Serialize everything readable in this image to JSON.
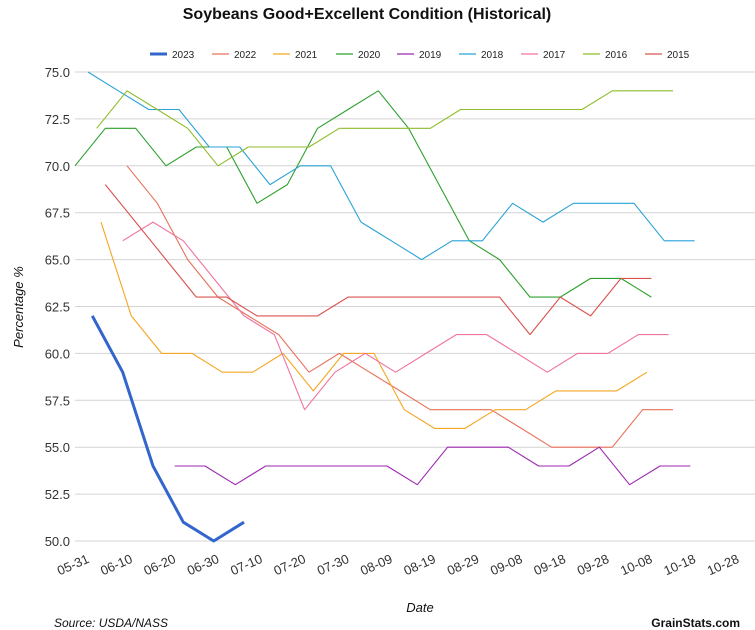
{
  "chart_data": {
    "type": "line",
    "title": "Soybeans Good+Excellent Condition (Historical)",
    "xlabel": "Date",
    "ylabel": "Percentage %",
    "ylim": [
      50,
      75
    ],
    "yticks": [
      "50.0",
      "52.5",
      "55.0",
      "57.5",
      "60.0",
      "62.5",
      "65.0",
      "67.5",
      "70.0",
      "72.5",
      "75.0"
    ],
    "xlim": [
      "05-31",
      "10-28"
    ],
    "xticks": [
      "05-31",
      "06-10",
      "06-20",
      "06-30",
      "07-10",
      "07-20",
      "07-30",
      "08-09",
      "08-19",
      "08-29",
      "09-08",
      "09-18",
      "09-28",
      "10-08",
      "10-18",
      "10-28"
    ],
    "grid": true,
    "legend_position": "top",
    "series": [
      {
        "name": "2023",
        "color": "#3366cc",
        "emphasis": true,
        "points": [
          [
            "06-04",
            62
          ],
          [
            "06-11",
            59
          ],
          [
            "06-18",
            54
          ],
          [
            "06-25",
            51
          ],
          [
            "07-02",
            50
          ],
          [
            "07-09",
            51
          ]
        ]
      },
      {
        "name": "2022",
        "color": "#e8705a",
        "points": [
          [
            "06-12",
            70
          ],
          [
            "06-19",
            68
          ],
          [
            "06-26",
            65
          ],
          [
            "07-03",
            63
          ],
          [
            "07-10",
            62
          ],
          [
            "07-17",
            61
          ],
          [
            "07-24",
            59
          ],
          [
            "07-31",
            60
          ],
          [
            "08-07",
            59
          ],
          [
            "08-14",
            58
          ],
          [
            "08-21",
            57
          ],
          [
            "08-28",
            57
          ],
          [
            "09-04",
            57
          ],
          [
            "09-11",
            56
          ],
          [
            "09-18",
            55
          ],
          [
            "09-25",
            55
          ],
          [
            "10-02",
            55
          ],
          [
            "10-09",
            57
          ],
          [
            "10-16",
            57
          ]
        ]
      },
      {
        "name": "2021",
        "color": "#f5a623",
        "points": [
          [
            "06-06",
            67
          ],
          [
            "06-13",
            62
          ],
          [
            "06-20",
            60
          ],
          [
            "06-27",
            60
          ],
          [
            "07-04",
            59
          ],
          [
            "07-11",
            59
          ],
          [
            "07-18",
            60
          ],
          [
            "07-25",
            58
          ],
          [
            "08-01",
            60
          ],
          [
            "08-08",
            60
          ],
          [
            "08-15",
            57
          ],
          [
            "08-22",
            56
          ],
          [
            "08-29",
            56
          ],
          [
            "09-05",
            57
          ],
          [
            "09-12",
            57
          ],
          [
            "09-19",
            58
          ],
          [
            "09-26",
            58
          ],
          [
            "10-03",
            58
          ],
          [
            "10-10",
            59
          ]
        ]
      },
      {
        "name": "2020",
        "color": "#2ca02c",
        "points": [
          [
            "05-31",
            70
          ],
          [
            "06-07",
            72
          ],
          [
            "06-14",
            72
          ],
          [
            "06-21",
            70
          ],
          [
            "06-28",
            71
          ],
          [
            "07-05",
            71
          ],
          [
            "07-12",
            68
          ],
          [
            "07-19",
            69
          ],
          [
            "07-26",
            72
          ],
          [
            "08-02",
            73
          ],
          [
            "08-09",
            74
          ],
          [
            "08-16",
            72
          ],
          [
            "08-23",
            69
          ],
          [
            "08-30",
            66
          ],
          [
            "09-06",
            65
          ],
          [
            "09-13",
            63
          ],
          [
            "09-20",
            63
          ],
          [
            "09-27",
            64
          ],
          [
            "10-04",
            64
          ],
          [
            "10-11",
            63
          ]
        ]
      },
      {
        "name": "2019",
        "color": "#9c27b0",
        "points": [
          [
            "06-23",
            54
          ],
          [
            "06-30",
            54
          ],
          [
            "07-07",
            53
          ],
          [
            "07-14",
            54
          ],
          [
            "07-21",
            54
          ],
          [
            "07-28",
            54
          ],
          [
            "08-04",
            54
          ],
          [
            "08-11",
            54
          ],
          [
            "08-18",
            53
          ],
          [
            "08-25",
            55
          ],
          [
            "09-01",
            55
          ],
          [
            "09-08",
            55
          ],
          [
            "09-15",
            54
          ],
          [
            "09-22",
            54
          ],
          [
            "09-29",
            55
          ],
          [
            "10-06",
            53
          ],
          [
            "10-13",
            54
          ],
          [
            "10-20",
            54
          ]
        ]
      },
      {
        "name": "2018",
        "color": "#29a3d6",
        "points": [
          [
            "06-03",
            75
          ],
          [
            "06-10",
            74
          ],
          [
            "06-17",
            73
          ],
          [
            "06-24",
            73
          ],
          [
            "07-01",
            71
          ],
          [
            "07-08",
            71
          ],
          [
            "07-15",
            69
          ],
          [
            "07-22",
            70
          ],
          [
            "07-29",
            70
          ],
          [
            "08-05",
            67
          ],
          [
            "08-12",
            66
          ],
          [
            "08-19",
            65
          ],
          [
            "08-26",
            66
          ],
          [
            "09-02",
            66
          ],
          [
            "09-09",
            68
          ],
          [
            "09-16",
            67
          ],
          [
            "09-23",
            68
          ],
          [
            "09-30",
            68
          ],
          [
            "10-07",
            68
          ],
          [
            "10-14",
            66
          ],
          [
            "10-21",
            66
          ]
        ]
      },
      {
        "name": "2017",
        "color": "#f0739f",
        "points": [
          [
            "06-11",
            66
          ],
          [
            "06-18",
            67
          ],
          [
            "06-25",
            66
          ],
          [
            "07-02",
            64
          ],
          [
            "07-09",
            62
          ],
          [
            "07-16",
            61
          ],
          [
            "07-23",
            57
          ],
          [
            "07-30",
            59
          ],
          [
            "08-06",
            60
          ],
          [
            "08-13",
            59
          ],
          [
            "08-20",
            60
          ],
          [
            "08-27",
            61
          ],
          [
            "09-03",
            61
          ],
          [
            "09-10",
            60
          ],
          [
            "09-17",
            59
          ],
          [
            "09-24",
            60
          ],
          [
            "10-01",
            60
          ],
          [
            "10-08",
            61
          ],
          [
            "10-15",
            61
          ]
        ]
      },
      {
        "name": "2016",
        "color": "#8fbc2a",
        "points": [
          [
            "06-05",
            72
          ],
          [
            "06-12",
            74
          ],
          [
            "06-19",
            73
          ],
          [
            "06-26",
            72
          ],
          [
            "07-03",
            70
          ],
          [
            "07-10",
            71
          ],
          [
            "07-17",
            71
          ],
          [
            "07-24",
            71
          ],
          [
            "07-31",
            72
          ],
          [
            "08-07",
            72
          ],
          [
            "08-14",
            72
          ],
          [
            "08-21",
            72
          ],
          [
            "08-28",
            73
          ],
          [
            "09-04",
            73
          ],
          [
            "09-11",
            73
          ],
          [
            "09-18",
            73
          ],
          [
            "09-25",
            73
          ],
          [
            "10-02",
            74
          ],
          [
            "10-09",
            74
          ],
          [
            "10-16",
            74
          ]
        ]
      },
      {
        "name": "2015",
        "color": "#d9534f",
        "points": [
          [
            "06-07",
            69
          ],
          [
            "06-14",
            67
          ],
          [
            "06-21",
            65
          ],
          [
            "06-28",
            63
          ],
          [
            "07-05",
            63
          ],
          [
            "07-12",
            62
          ],
          [
            "07-19",
            62
          ],
          [
            "07-26",
            62
          ],
          [
            "08-02",
            63
          ],
          [
            "08-09",
            63
          ],
          [
            "08-16",
            63
          ],
          [
            "08-23",
            63
          ],
          [
            "08-30",
            63
          ],
          [
            "09-06",
            63
          ],
          [
            "09-13",
            61
          ],
          [
            "09-20",
            63
          ],
          [
            "09-27",
            62
          ],
          [
            "10-04",
            64
          ],
          [
            "10-11",
            64
          ]
        ]
      }
    ]
  },
  "footer": {
    "source": "Source: USDA/NASS",
    "brand": "GrainStats.com"
  }
}
